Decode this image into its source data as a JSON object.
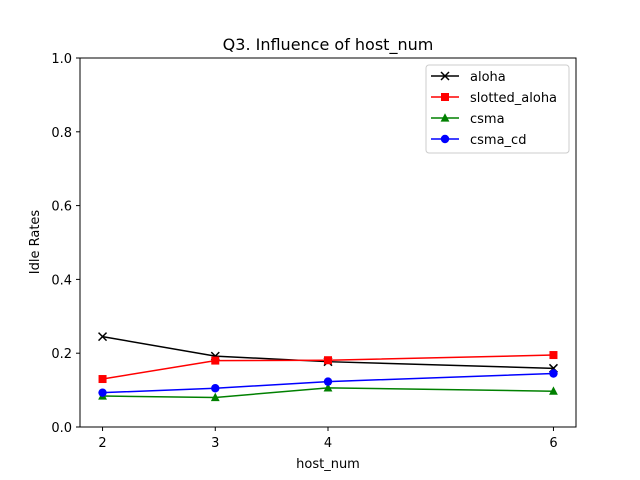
{
  "chart_data": {
    "type": "line",
    "title": "Q3. Influence of host_num",
    "xlabel": "host_num",
    "ylabel": "Idle Rates",
    "x": [
      2,
      3,
      4,
      6
    ],
    "xticks": [
      "2",
      "3",
      "4",
      "6"
    ],
    "xlim": [
      1.8,
      6.2
    ],
    "ylim": [
      0.0,
      1.0
    ],
    "yticks": [
      "0.0",
      "0.2",
      "0.4",
      "0.6",
      "0.8",
      "1.0"
    ],
    "grid": false,
    "legend_position": "top-right",
    "series": [
      {
        "name": "aloha",
        "color": "#000000",
        "marker": "x",
        "values": [
          0.245,
          0.192,
          0.177,
          0.159
        ]
      },
      {
        "name": "slotted_aloha",
        "color": "#ff0000",
        "marker": "square",
        "values": [
          0.13,
          0.18,
          0.181,
          0.195
        ]
      },
      {
        "name": "csma",
        "color": "#008000",
        "marker": "triangle",
        "values": [
          0.084,
          0.08,
          0.106,
          0.097
        ]
      },
      {
        "name": "csma_cd",
        "color": "#0000ff",
        "marker": "circle",
        "values": [
          0.093,
          0.105,
          0.123,
          0.145
        ]
      }
    ]
  }
}
